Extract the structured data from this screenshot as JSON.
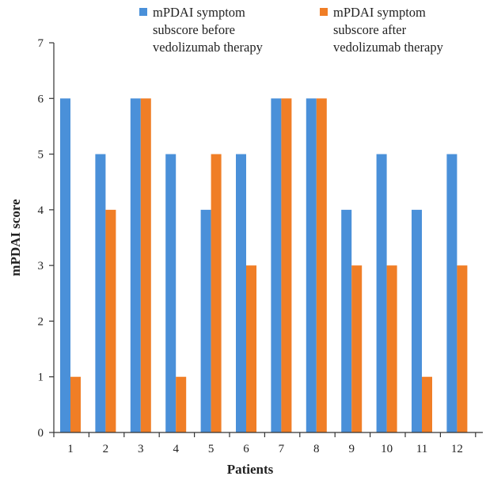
{
  "chart_data": {
    "type": "bar",
    "title": "",
    "xlabel": "Patients",
    "ylabel": "mPDAI score",
    "ylim": [
      0,
      7
    ],
    "yticks": [
      0,
      1,
      2,
      3,
      4,
      5,
      6,
      7
    ],
    "grid": false,
    "legend_position": "top",
    "categories": [
      "1",
      "2",
      "3",
      "4",
      "5",
      "6",
      "7",
      "8",
      "9",
      "10",
      "11",
      "12"
    ],
    "series": [
      {
        "name": "mPDAI symptom subscore before vedolizumab therapy",
        "legend_lines": [
          "mPDAI symptom",
          "subscore before",
          "vedolizumab therapy"
        ],
        "color": "#4a90d9",
        "values": [
          6,
          5,
          6,
          5,
          4,
          5,
          6,
          6,
          4,
          5,
          4,
          5
        ]
      },
      {
        "name": "mPDAI symptom subscore after vedolizumab therapy",
        "legend_lines": [
          "mPDAI symptom",
          "subscore after",
          "vedolizumab therapy"
        ],
        "color": "#f07e26",
        "values": [
          1,
          4,
          6,
          1,
          5,
          3,
          6,
          6,
          3,
          3,
          1,
          3
        ]
      }
    ]
  }
}
